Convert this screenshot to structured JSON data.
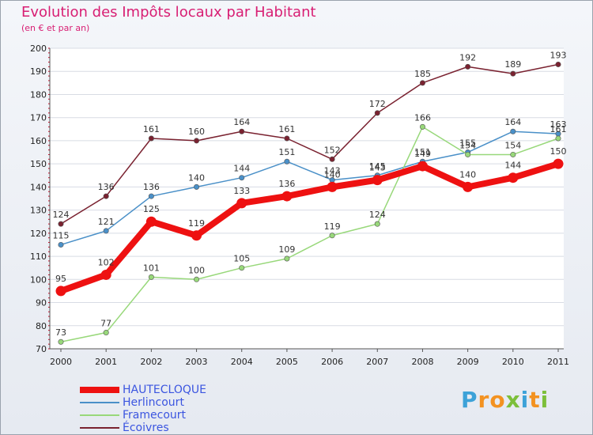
{
  "title": "Evolution des Impôts locaux par Habitant",
  "subtitle": "(en € et par an)",
  "logo": {
    "text": "Proxiti",
    "letters": [
      {
        "ch": "P",
        "color": "#3da2d8"
      },
      {
        "ch": "r",
        "color": "#f39221"
      },
      {
        "ch": "o",
        "color": "#f39221"
      },
      {
        "ch": "x",
        "color": "#7cbf3a"
      },
      {
        "ch": "i",
        "color": "#3da2d8"
      },
      {
        "ch": "t",
        "color": "#f39221"
      },
      {
        "ch": "i",
        "color": "#7cbf3a"
      }
    ]
  },
  "chart_data": {
    "type": "line",
    "title": "Evolution des Impôts locaux par Habitant",
    "subtitle": "(en € et par an)",
    "xlabel": "",
    "ylabel": "",
    "x": [
      "2000",
      "2001",
      "2002",
      "2003",
      "2004",
      "2005",
      "2006",
      "2007",
      "2008",
      "2009",
      "2010",
      "2011"
    ],
    "ylim": [
      70,
      200
    ],
    "yticks": [
      70,
      80,
      90,
      100,
      110,
      120,
      130,
      140,
      150,
      160,
      170,
      180,
      190,
      200
    ],
    "grid": "horizontal",
    "legend_position": "bottom-left",
    "series": [
      {
        "name": "Écoivres",
        "color": "#7a2230",
        "values": [
          124,
          136,
          161,
          160,
          164,
          161,
          152,
          172,
          185,
          192,
          189,
          193
        ]
      },
      {
        "name": "Herlincourt",
        "color": "#4a90c8",
        "values": [
          115,
          121,
          136,
          140,
          144,
          151,
          143,
          145,
          151,
          155,
          164,
          163
        ]
      },
      {
        "name": "Framecourt",
        "color": "#98d87a",
        "values": [
          73,
          77,
          101,
          100,
          105,
          109,
          119,
          124,
          166,
          154,
          154,
          161
        ]
      },
      {
        "name": "HAUTECLOQUE",
        "color": "#ee1111",
        "values": [
          95,
          102,
          125,
          119,
          133,
          136,
          140,
          143,
          149,
          140,
          144,
          150
        ]
      }
    ],
    "legend": [
      "HAUTECLOQUE",
      "Herlincourt",
      "Framecourt",
      "Écoivres"
    ]
  }
}
